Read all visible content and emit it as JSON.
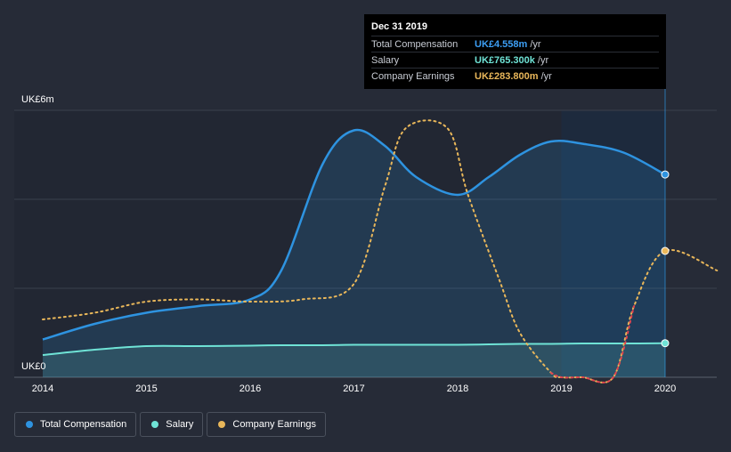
{
  "chart_data": {
    "type": "line",
    "x": [
      2014.0,
      2014.5,
      2015.0,
      2015.5,
      2016.0,
      2016.3,
      2016.7,
      2017.0,
      2017.3,
      2017.6,
      2018.0,
      2018.3,
      2018.6,
      2018.9,
      2019.2,
      2019.6,
      2020.0
    ],
    "series": [
      {
        "name": "Total Compensation",
        "color": "#2e93e0",
        "values": [
          0.85,
          1.2,
          1.45,
          1.6,
          1.75,
          2.4,
          4.8,
          5.55,
          5.2,
          4.5,
          4.1,
          4.5,
          5.0,
          5.3,
          5.25,
          5.05,
          4.558
        ]
      },
      {
        "name": "Salary",
        "color": "#6fe3d6",
        "values": [
          0.5,
          0.62,
          0.7,
          0.7,
          0.71,
          0.72,
          0.72,
          0.73,
          0.73,
          0.73,
          0.73,
          0.74,
          0.75,
          0.75,
          0.76,
          0.76,
          0.7653
        ]
      }
    ],
    "earnings": {
      "name": "Company Earnings",
      "color": "#e9b75a",
      "negative_color": "#e0454f",
      "x": [
        2014.0,
        2014.5,
        2015.0,
        2015.5,
        2016.0,
        2016.5,
        2017.0,
        2017.3,
        2017.5,
        2017.9,
        2018.1,
        2018.4,
        2018.6,
        2018.9,
        2019.0,
        2019.2,
        2019.5,
        2019.7,
        2020.0,
        2020.5
      ],
      "values": [
        1.3,
        1.45,
        1.7,
        1.75,
        1.7,
        1.75,
        2.1,
        4.3,
        5.6,
        5.6,
        4.1,
        2.2,
        1.0,
        0.1,
        0.0,
        0.0,
        0.0,
        1.6,
        2.84,
        2.4
      ]
    },
    "x_ticks": [
      "2014",
      "2015",
      "2016",
      "2017",
      "2018",
      "2019",
      "2020"
    ],
    "y_top_label": "UK£6m",
    "y_bottom_label": "UK£0",
    "ylim": [
      0,
      6
    ],
    "xlim": [
      2014,
      2020.5
    ],
    "highlight_from": 2019.0,
    "highlight_to": 2020.0,
    "grid": true,
    "legend_position": "bottom-left",
    "tooltip": {
      "date": "Dec 31 2019",
      "rows": [
        {
          "name": "Total Compensation",
          "value": "UK£4.558m",
          "unit": "/yr",
          "color": "#3d9ff5"
        },
        {
          "name": "Salary",
          "value": "UK£765.300k",
          "unit": "/yr",
          "color": "#6fe3d6"
        },
        {
          "name": "Company Earnings",
          "value": "UK£283.800m",
          "unit": "/yr",
          "color": "#e9b75a"
        }
      ]
    }
  },
  "legend": [
    {
      "label": "Total Compensation",
      "color": "#2e93e0"
    },
    {
      "label": "Salary",
      "color": "#6fe3d6"
    },
    {
      "label": "Company Earnings",
      "color": "#e9b75a"
    }
  ]
}
